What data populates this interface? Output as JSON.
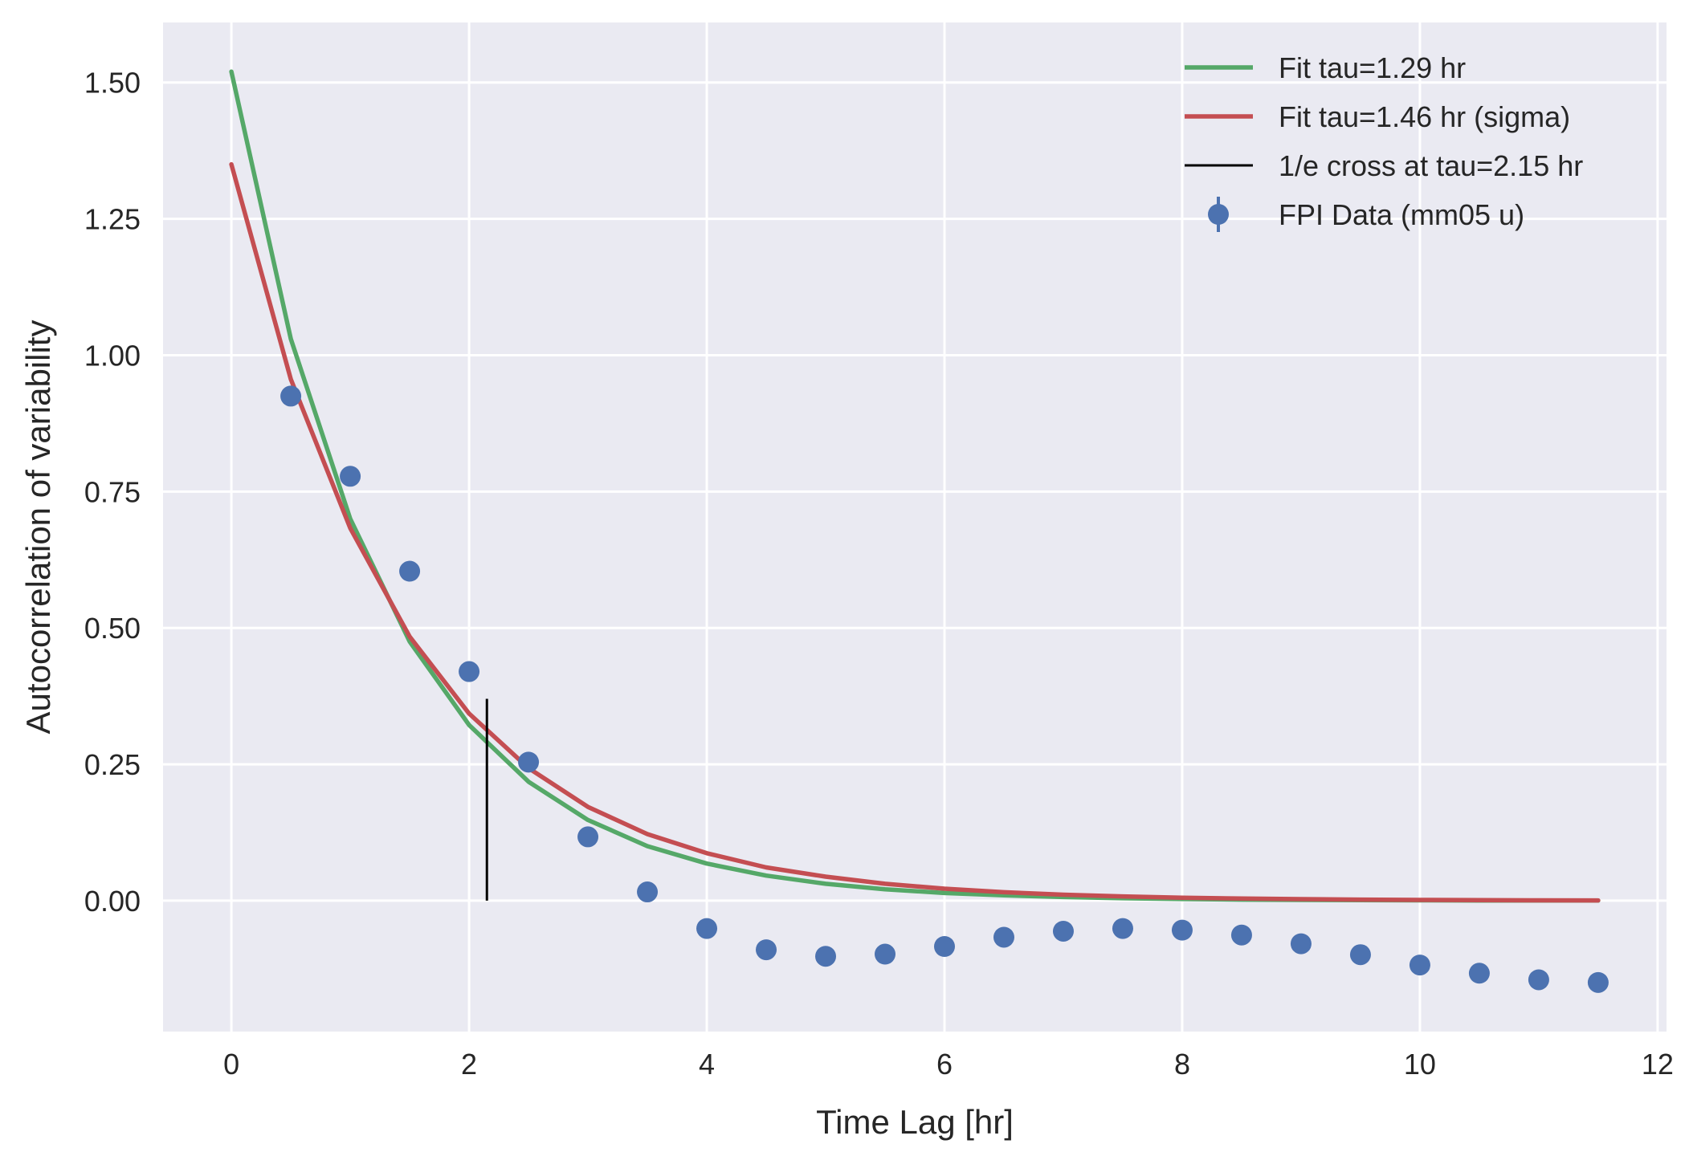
{
  "chart_data": {
    "type": "line",
    "title": "",
    "xlabel": "Time Lag [hr]",
    "ylabel": "Autocorrelation of variability",
    "xlim": [
      -0.575,
      12.075
    ],
    "ylim": [
      -0.24,
      1.61
    ],
    "xticks": [
      0,
      2,
      4,
      6,
      8,
      10,
      12
    ],
    "yticks": [
      0.0,
      0.25,
      0.5,
      0.75,
      1.0,
      1.25,
      1.5
    ],
    "xtick_labels": [
      "0",
      "2",
      "4",
      "6",
      "8",
      "10",
      "12"
    ],
    "ytick_labels": [
      "0.00",
      "0.25",
      "0.50",
      "0.75",
      "1.00",
      "1.25",
      "1.50"
    ],
    "grid": true,
    "legend_position": "top-right",
    "background": "#eaeaf2",
    "series": [
      {
        "name": "Fit tau=1.29 hr",
        "kind": "line",
        "color": "#55a868",
        "amplitude": 1.52,
        "tau": 1.29,
        "x": [
          0,
          0.5,
          1,
          1.5,
          2,
          2.5,
          3,
          3.5,
          4,
          4.5,
          5,
          5.5,
          6,
          6.5,
          7,
          7.5,
          8,
          8.5,
          9,
          9.5,
          10,
          10.5,
          11,
          11.5
        ],
        "values": [
          1.52,
          1.03,
          0.7,
          0.475,
          0.322,
          0.218,
          0.148,
          0.1,
          0.068,
          0.046,
          0.031,
          0.021,
          0.014,
          0.0097,
          0.0066,
          0.0045,
          0.003,
          0.002,
          0.0014,
          0.0009,
          0.0006,
          0.0004,
          0.0003,
          0.0002
        ]
      },
      {
        "name": "Fit tau=1.46 hr (sigma)",
        "kind": "line",
        "color": "#c44e52",
        "amplitude": 1.35,
        "tau": 1.46,
        "x": [
          0,
          0.5,
          1,
          1.5,
          2,
          2.5,
          3,
          3.5,
          4,
          4.5,
          5,
          5.5,
          6,
          6.5,
          7,
          7.5,
          8,
          8.5,
          9,
          9.5,
          10,
          10.5,
          11,
          11.5
        ],
        "values": [
          1.35,
          0.956,
          0.683,
          0.484,
          0.343,
          0.243,
          0.172,
          0.122,
          0.087,
          0.061,
          0.044,
          0.031,
          0.022,
          0.0155,
          0.011,
          0.0078,
          0.0055,
          0.0039,
          0.0028,
          0.002,
          0.0014,
          0.001,
          0.0007,
          0.0005
        ]
      },
      {
        "name": "1/e cross at tau=2.15 hr",
        "kind": "vline",
        "color": "#000000",
        "x": 2.15,
        "y_range": [
          0,
          0.37
        ]
      },
      {
        "name": "FPI Data (mm05 u)",
        "kind": "scatter",
        "color": "#4c72b0",
        "x": [
          0.5,
          1,
          1.5,
          2,
          2.5,
          3,
          3.5,
          4,
          4.5,
          5,
          5.5,
          6,
          6.5,
          7,
          7.5,
          8,
          8.5,
          9,
          9.5,
          10,
          10.5,
          11,
          11.5
        ],
        "values": [
          0.925,
          0.778,
          0.604,
          0.42,
          0.254,
          0.117,
          0.016,
          -0.051,
          -0.09,
          -0.102,
          -0.098,
          -0.084,
          -0.067,
          -0.056,
          -0.051,
          -0.054,
          -0.063,
          -0.079,
          -0.099,
          -0.118,
          -0.133,
          -0.145,
          -0.15
        ]
      }
    ]
  }
}
